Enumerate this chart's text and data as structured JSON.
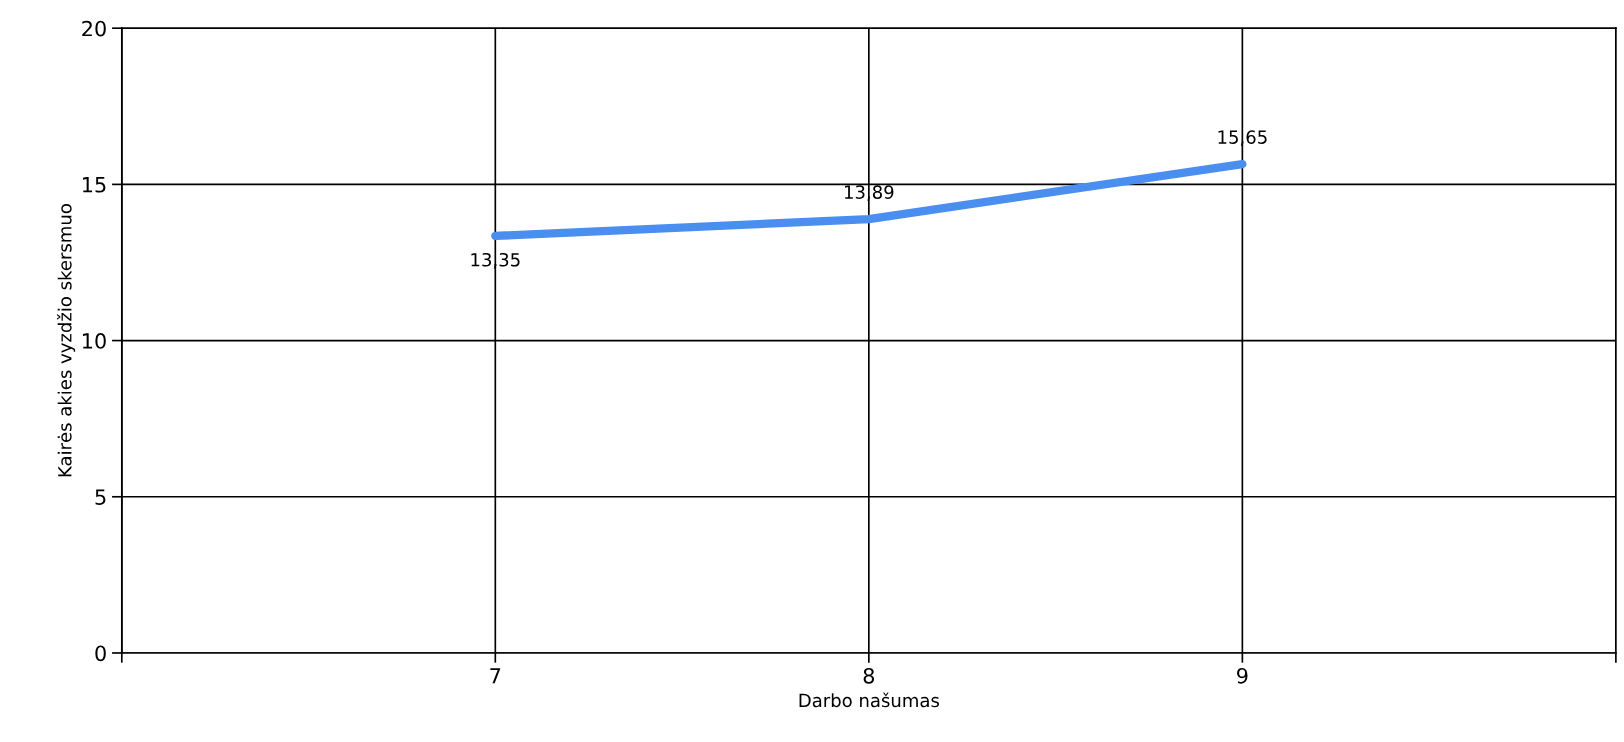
{
  "chart_data": {
    "type": "line",
    "xlabel": "Darbo našumas",
    "ylabel": "Kairės akies vyzdžio skersmuo",
    "x": [
      7,
      8,
      9
    ],
    "series": [
      {
        "color": "#4a8ef0",
        "values": [
          13.35,
          13.89,
          15.65
        ],
        "value_labels": [
          "13,35",
          "13,89",
          "15,65"
        ]
      }
    ],
    "xlim": [
      6,
      10
    ],
    "xticks": [
      {
        "value": 6,
        "label": null
      },
      7,
      8,
      9,
      {
        "value": 10,
        "label": null
      }
    ],
    "ylim": [
      0,
      20
    ],
    "yticks": [
      0,
      5,
      10,
      15,
      20
    ],
    "grid": true,
    "legend": false,
    "marker": "none",
    "line_style": "solid"
  }
}
